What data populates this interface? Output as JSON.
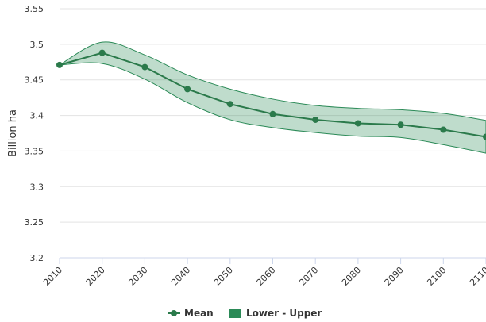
{
  "chart_data": {
    "type": "line_band",
    "y_label": "Billion ha",
    "x": [
      2010,
      2020,
      2030,
      2040,
      2050,
      2060,
      2070,
      2080,
      2090,
      2100,
      2110
    ],
    "xlim": [
      2010,
      2110
    ],
    "xticks": [
      2010,
      2020,
      2030,
      2040,
      2050,
      2060,
      2070,
      2080,
      2090,
      2100,
      2110
    ],
    "ylim": [
      3.2,
      3.55
    ],
    "yticks": [
      3.2,
      3.25,
      3.3,
      3.35,
      3.4,
      3.45,
      3.5,
      3.55
    ],
    "grid": true,
    "legend": "bottom",
    "series": [
      {
        "name": "Mean",
        "color": "#2b7a4b",
        "values": [
          3.471,
          3.488,
          3.468,
          3.437,
          3.416,
          3.402,
          3.394,
          3.389,
          3.387,
          3.38,
          3.37
        ]
      },
      {
        "name": "Lower - Upper",
        "color": "#2b8a57",
        "lower": [
          3.471,
          3.473,
          3.451,
          3.418,
          3.394,
          3.383,
          3.376,
          3.371,
          3.369,
          3.359,
          3.347
        ],
        "upper": [
          3.471,
          3.503,
          3.485,
          3.457,
          3.437,
          3.423,
          3.414,
          3.41,
          3.408,
          3.403,
          3.393
        ]
      }
    ]
  }
}
